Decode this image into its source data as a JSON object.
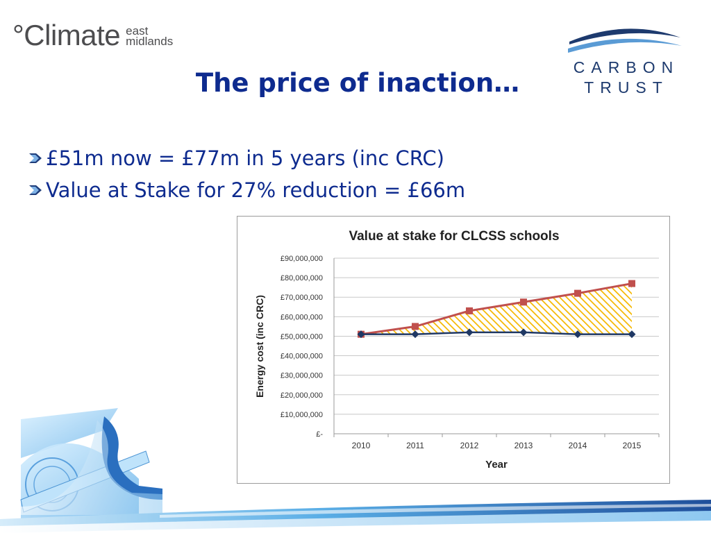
{
  "logos": {
    "climate": {
      "main": "°Climate",
      "sub_line1": "east",
      "sub_line2": "midlands"
    },
    "carbon_trust": {
      "line1": "CARBON",
      "line2": "TRUST"
    }
  },
  "slide": {
    "title": "The price of inaction…",
    "bullets": [
      "£51m now = £77m in 5 years (inc CRC)",
      "Value at Stake for 27% reduction = £66m"
    ]
  },
  "colors": {
    "title_blue": "#0e2b8f",
    "upper_series": "#c0504d",
    "lower_series": "#1f3864",
    "fill": "#f5b800"
  },
  "chart_data": {
    "type": "line",
    "title": "Value at stake for CLCSS schools",
    "xlabel": "Year",
    "ylabel": "Energy cost (inc CRC)",
    "categories": [
      "2010",
      "2011",
      "2012",
      "2013",
      "2014",
      "2015"
    ],
    "ylim": [
      0,
      90000000
    ],
    "yticks": [
      "£-",
      "£10,000,000",
      "£20,000,000",
      "£30,000,000",
      "£40,000,000",
      "£50,000,000",
      "£60,000,000",
      "£70,000,000",
      "£80,000,000",
      "£90,000,000"
    ],
    "series": [
      {
        "values": [
          51000000,
          55000000,
          63000000,
          67500000,
          72000000,
          77000000
        ],
        "color": "#c0504d",
        "marker": "square"
      },
      {
        "values": [
          51000000,
          51000000,
          52000000,
          52000000,
          51000000,
          51000000
        ],
        "color": "#1f3864",
        "marker": "diamond"
      }
    ],
    "fill_between": {
      "color": "#f5b800",
      "pattern": "diagonal-hatch"
    },
    "grid": true,
    "legend": "none"
  }
}
